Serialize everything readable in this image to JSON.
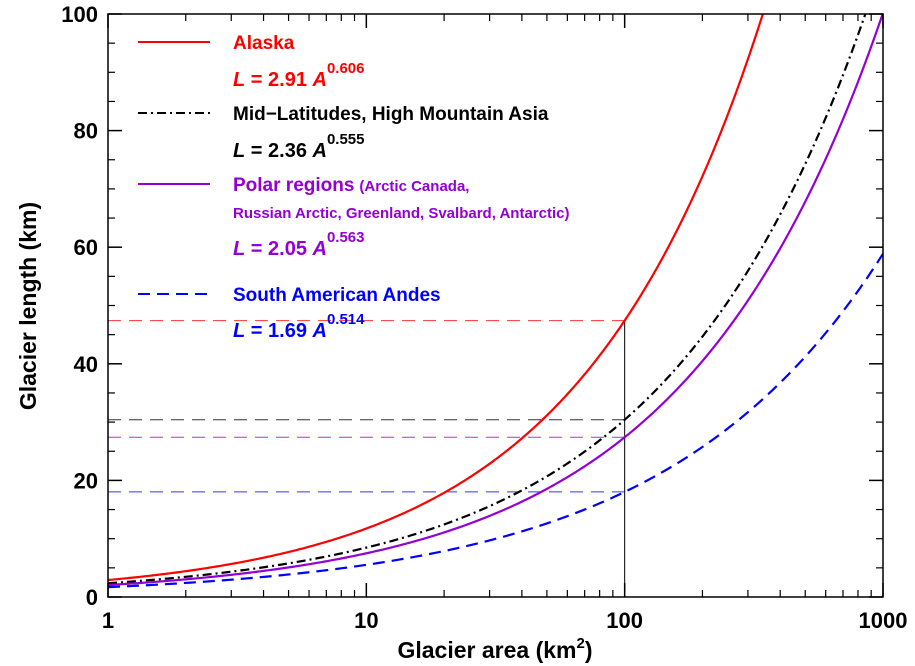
{
  "chart_data": {
    "type": "line",
    "xscale": "log",
    "xlim": [
      1,
      1000
    ],
    "ylim": [
      0,
      100
    ],
    "xticks": [
      {
        "value": 1,
        "label": "1"
      },
      {
        "value": 10,
        "label": "10"
      },
      {
        "value": 100,
        "label": "100"
      },
      {
        "value": 1000,
        "label": "1000"
      }
    ],
    "yticks": [
      {
        "value": 0,
        "label": "0"
      },
      {
        "value": 20,
        "label": "20"
      },
      {
        "value": 40,
        "label": "40"
      },
      {
        "value": 60,
        "label": "60"
      },
      {
        "value": 80,
        "label": "80"
      },
      {
        "value": 100,
        "label": "100"
      }
    ],
    "xlabel": {
      "main": "Glacier area (km",
      "sup": "2",
      "close": ")"
    },
    "ylabel": "Glacier length (km)",
    "grid": false,
    "legend_placement": "top-left",
    "reference_x": 100,
    "series": [
      {
        "name": "Alaska",
        "coef": 2.91,
        "exp": 0.606,
        "color": "#ff0000",
        "dash": "solid",
        "eq": {
          "L": "L",
          "mid": " = 2.91 ",
          "A": "A",
          "sup": "0.606"
        }
      },
      {
        "name": "Mid−Latitudes, High Mountain Asia",
        "coef": 2.36,
        "exp": 0.555,
        "color": "#000000",
        "dash": "dashdot",
        "eq": {
          "L": "L",
          "mid": " = 2.36 ",
          "A": "A",
          "sup": "0.555"
        }
      },
      {
        "name": "Polar regions",
        "name_detail": "(Arctic Canada,",
        "name_line2": "Russian Arctic, Greenland, Svalbard, Antarctic)",
        "coef": 2.05,
        "exp": 0.563,
        "color": "#9400d3",
        "dash": "solid",
        "eq": {
          "L": "L",
          "mid": " = 2.05 ",
          "A": "A",
          "sup": "0.563"
        }
      },
      {
        "name": "South American Andes",
        "coef": 1.69,
        "exp": 0.514,
        "color": "#0000ff",
        "dash": "dashed",
        "eq": {
          "L": "L",
          "mid": " = 1.69 ",
          "A": "A",
          "sup": "0.514"
        }
      }
    ]
  }
}
